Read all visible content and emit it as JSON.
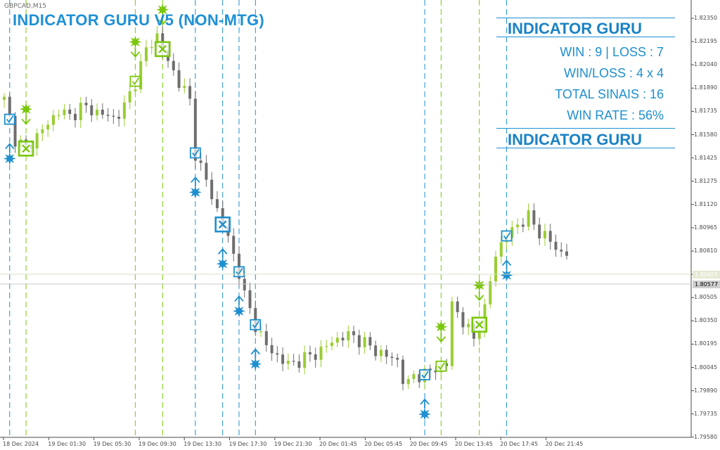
{
  "window": {
    "symbol": "GBPCAD,M15"
  },
  "indicator": {
    "title": "INDICATOR GURU V5 (NON-MTG)"
  },
  "stats_panel": {
    "brand_top": "INDICATOR GURU",
    "win_loss_line": "WIN : 9 | LOSS : 7",
    "ratio_line": "WIN/LOSS : 4 x 4",
    "total_line": "TOTAL SINAIS : 16",
    "rate_line": "WIN RATE : 56%",
    "brand_bottom": "INDICATOR GURU"
  },
  "price_axis": {
    "labels": [
      "1.82350",
      "1.82195",
      "1.82040",
      "1.81890",
      "1.81735",
      "1.81580",
      "1.81425",
      "1.81275",
      "1.81120",
      "1.80965",
      "1.80810",
      "1.80655",
      "1.80505",
      "1.80350",
      "1.80195",
      "1.80045",
      "1.79890",
      "1.79735",
      "1.79580"
    ],
    "current_price": "1.80577",
    "bid_ask_tag": "1.80655"
  },
  "time_axis": {
    "labels": [
      "18 Dec 2024",
      "19 Dec 01:30",
      "19 Dec 05:30",
      "19 Dec 09:30",
      "19 Dec 13:30",
      "19 Dec 17:30",
      "19 Dec 21:30",
      "20 Dec 01:45",
      "20 Dec 05:45",
      "20 Dec 09:45",
      "20 Dec 13:45",
      "20 Dec 17:45",
      "20 Dec 21:45"
    ]
  },
  "colors": {
    "bull_candle": "#9acd32",
    "bear_candle": "#6e6e6e",
    "call_signal": "#1e8fcf",
    "put_signal": "#7ac70c",
    "axis_text": "#4a4a4a"
  },
  "chart_data": {
    "type": "candlestick",
    "title": "INDICATOR GURU V5 (NON-MTG)",
    "symbol": "GBPCAD,M15",
    "ylim": [
      1.7958,
      1.8235
    ],
    "close_path": [
      [
        0,
        1.8177
      ],
      [
        2,
        1.815
      ],
      [
        4,
        1.8143
      ],
      [
        6,
        1.8152
      ],
      [
        8,
        1.816
      ],
      [
        10,
        1.817
      ],
      [
        12,
        1.8165
      ],
      [
        14,
        1.8172
      ],
      [
        16,
        1.817
      ],
      [
        18,
        1.8167
      ],
      [
        20,
        1.8164
      ],
      [
        22,
        1.8172
      ],
      [
        24,
        1.819
      ],
      [
        26,
        1.8212
      ],
      [
        28,
        1.8222
      ],
      [
        30,
        1.8203
      ],
      [
        32,
        1.819
      ],
      [
        34,
        1.8176
      ],
      [
        35,
        1.814
      ],
      [
        37,
        1.812
      ],
      [
        39,
        1.81
      ],
      [
        41,
        1.808
      ],
      [
        43,
        1.8057
      ],
      [
        44,
        1.804
      ],
      [
        46,
        1.802
      ],
      [
        48,
        1.8005
      ],
      [
        50,
        1.7998
      ],
      [
        52,
        1.7992
      ],
      [
        54,
        1.7995
      ],
      [
        56,
        1.7998
      ],
      [
        58,
        1.8002
      ],
      [
        60,
        1.8008
      ],
      [
        62,
        1.8012
      ],
      [
        64,
        1.8012
      ],
      [
        66,
        1.8007
      ],
      [
        68,
        1.8002
      ],
      [
        70,
        1.7998
      ],
      [
        72,
        1.7995
      ],
      [
        73,
        1.7982
      ],
      [
        74,
        1.7978
      ],
      [
        75,
        1.7985
      ],
      [
        77,
        1.7985
      ],
      [
        79,
        1.799
      ],
      [
        81,
        1.7992
      ],
      [
        82,
        1.8035
      ],
      [
        84,
        1.8022
      ],
      [
        86,
        1.801
      ],
      [
        88,
        1.803
      ],
      [
        90,
        1.807
      ],
      [
        92,
        1.8082
      ],
      [
        94,
        1.809
      ],
      [
        96,
        1.8095
      ],
      [
        98,
        1.8085
      ],
      [
        100,
        1.8078
      ],
      [
        102,
        1.807
      ]
    ],
    "signals": [
      {
        "kind": "call",
        "result": "win",
        "index": 1
      },
      {
        "kind": "put",
        "result": "loss",
        "index": 4
      },
      {
        "kind": "put",
        "result": "win",
        "index": 24
      },
      {
        "kind": "put",
        "result": "loss",
        "index": 29
      },
      {
        "kind": "call",
        "result": "win",
        "index": 35
      },
      {
        "kind": "call",
        "result": "loss",
        "index": 40
      },
      {
        "kind": "call",
        "result": "win",
        "index": 43
      },
      {
        "kind": "call",
        "result": "win",
        "index": 46
      },
      {
        "kind": "call",
        "result": "win",
        "index": 77
      },
      {
        "kind": "put",
        "result": "win",
        "index": 80
      },
      {
        "kind": "put",
        "result": "loss",
        "index": 87
      },
      {
        "kind": "call",
        "result": "win",
        "index": 92
      }
    ]
  }
}
